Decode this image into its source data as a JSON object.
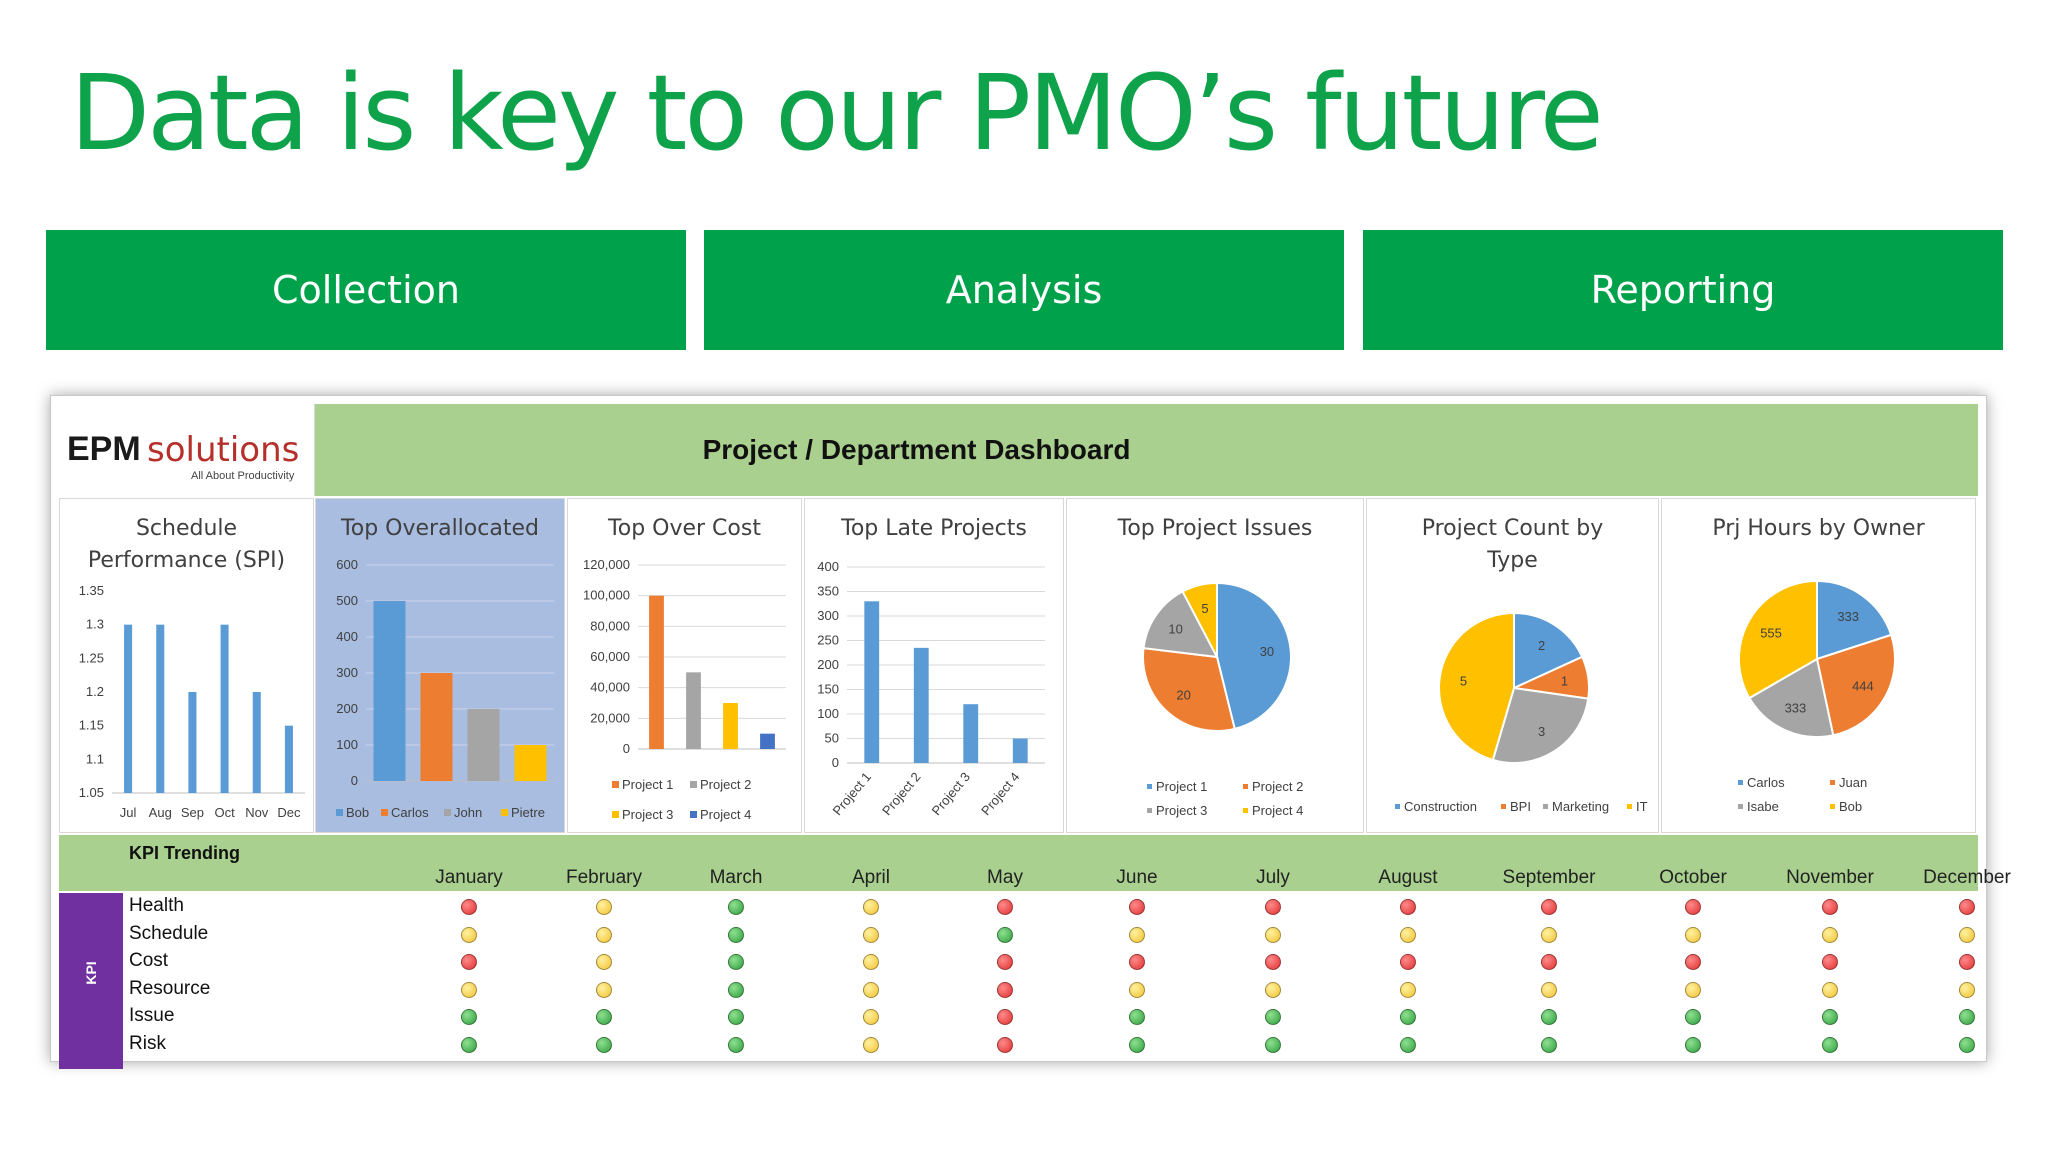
{
  "slide": {
    "title": "Data is key to our PMO’s future",
    "stages": [
      "Collection",
      "Analysis",
      "Reporting"
    ],
    "stage_color": "#00a14b",
    "title_color": "#0ea24a"
  },
  "dashboard": {
    "logo": {
      "brand_bold": "EPM",
      "brand_light": "solutions",
      "tagline": "All About Productivity"
    },
    "title": "Project / Department Dashboard",
    "header_color": "#a9d08e"
  },
  "chart_data": [
    {
      "id": "spi",
      "type": "bar",
      "title": "Schedule Performance (SPI)",
      "categories": [
        "Jul",
        "Aug",
        "Sep",
        "Oct",
        "Nov",
        "Dec"
      ],
      "values": [
        1.3,
        1.3,
        1.2,
        1.3,
        1.2,
        1.15
      ],
      "ylim": [
        1.05,
        1.35
      ],
      "yticks": [
        "1.35",
        "1.3",
        "1.25",
        "1.2",
        "1.15",
        "1.1",
        "1.05"
      ],
      "grid": false
    },
    {
      "id": "overallocated",
      "type": "bar",
      "title": "Top Overallocated",
      "categories": [
        "Bob",
        "Carlos",
        "John",
        "Pietre"
      ],
      "values": [
        500,
        300,
        200,
        100
      ],
      "ylim": [
        0,
        600
      ],
      "yticks": [
        "600",
        "500",
        "400",
        "300",
        "200",
        "100",
        "0"
      ],
      "grid": true,
      "legend": "bottom",
      "background": "#a8bde0"
    },
    {
      "id": "overcost",
      "type": "bar",
      "title": "Top Over Cost",
      "categories": [
        "Project 1",
        "Project 2",
        "Project 3",
        "Project 4"
      ],
      "values": [
        100000,
        50000,
        30000,
        10000
      ],
      "ylim": [
        0,
        120000
      ],
      "yticks": [
        "120,000",
        "100,000",
        "80,000",
        "60,000",
        "40,000",
        "20,000",
        "0"
      ],
      "grid": true,
      "legend": "bottom"
    },
    {
      "id": "late",
      "type": "bar",
      "title": "Top Late Projects",
      "categories": [
        "Project 1",
        "Project 2",
        "Project 3",
        "Project 4"
      ],
      "values": [
        330,
        235,
        120,
        50
      ],
      "ylim": [
        0,
        400
      ],
      "yticks": [
        "400",
        "350",
        "300",
        "250",
        "200",
        "150",
        "100",
        "50",
        "0"
      ],
      "grid": true
    },
    {
      "id": "issues",
      "type": "pie",
      "title": "Top Project Issues",
      "labels": [
        "Project 1",
        "Project 2",
        "Project 3",
        "Project 4"
      ],
      "values": [
        30,
        20,
        10,
        5
      ],
      "legend": "bottom"
    },
    {
      "id": "count",
      "type": "pie",
      "title": "Project Count by Type",
      "labels": [
        "Construction",
        "BPI",
        "Marketing",
        "IT"
      ],
      "values": [
        2,
        1,
        3,
        5
      ],
      "legend": "bottom"
    },
    {
      "id": "hours",
      "type": "pie",
      "title": "Prj Hours by Owner",
      "labels": [
        "Carlos",
        "Juan",
        "Isabe",
        "Bob"
      ],
      "values": [
        333,
        444,
        333,
        555
      ],
      "legend": "bottom"
    }
  ],
  "palette": {
    "blue": "#5b9bd5",
    "orange": "#ed7d31",
    "gray": "#a5a5a5",
    "yellow": "#ffc000",
    "darkblue": "#4472c4"
  },
  "kpi": {
    "section_title": "KPI Trending",
    "side_label": "KPI",
    "months": [
      "January",
      "February",
      "March",
      "April",
      "May",
      "June",
      "July",
      "August",
      "September",
      "October",
      "November",
      "December"
    ],
    "rows": [
      {
        "label": "Health",
        "status": [
          "red",
          "yellow",
          "green",
          "yellow",
          "red",
          "red",
          "red",
          "red",
          "red",
          "red",
          "red",
          "red"
        ]
      },
      {
        "label": "Schedule",
        "status": [
          "yellow",
          "yellow",
          "green",
          "yellow",
          "green",
          "yellow",
          "yellow",
          "yellow",
          "yellow",
          "yellow",
          "yellow",
          "yellow"
        ]
      },
      {
        "label": "Cost",
        "status": [
          "red",
          "yellow",
          "green",
          "yellow",
          "red",
          "red",
          "red",
          "red",
          "red",
          "red",
          "red",
          "red"
        ]
      },
      {
        "label": "Resource",
        "status": [
          "yellow",
          "yellow",
          "green",
          "yellow",
          "red",
          "yellow",
          "yellow",
          "yellow",
          "yellow",
          "yellow",
          "yellow",
          "yellow"
        ]
      },
      {
        "label": "Issue",
        "status": [
          "green",
          "green",
          "green",
          "yellow",
          "red",
          "green",
          "green",
          "green",
          "green",
          "green",
          "green",
          "green"
        ]
      },
      {
        "label": "Risk",
        "status": [
          "green",
          "green",
          "green",
          "yellow",
          "red",
          "green",
          "green",
          "green",
          "green",
          "green",
          "green",
          "green"
        ]
      }
    ]
  }
}
